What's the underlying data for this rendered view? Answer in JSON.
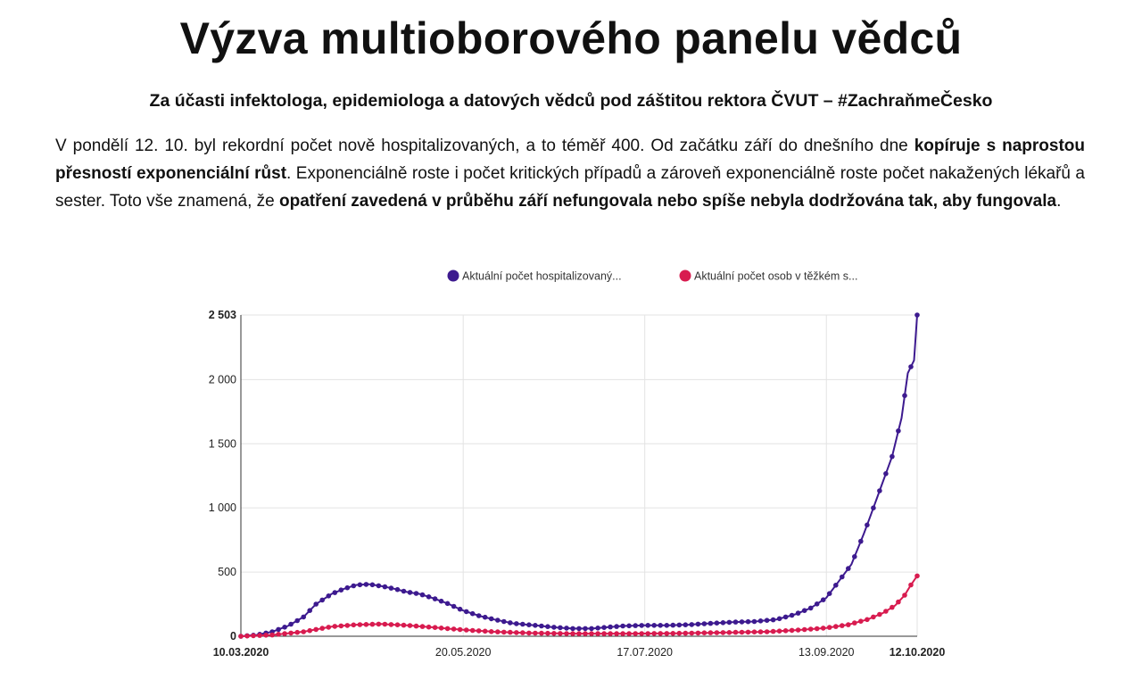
{
  "header": {
    "title": "Výzva multioborového panelu vědců",
    "subtitle": "Za účasti infektologa, epidemiologa a datových vědců pod záštitou rektora ČVUT – #ZachraňmeČesko"
  },
  "paragraph": {
    "p1": "V pondělí 12. 10. byl rekordní počet nově hospitalizovaných, a to téměř 400. Od začátku září do dnešního dne ",
    "b1": "kopíruje s naprostou přesností exponenciální růst",
    "p2": ". Exponenciálně roste i počet kritických případů a zároveň exponenciálně roste počet nakažených lékařů a sester. Toto vše znamená, že ",
    "b2": "opatření zavedená v průběhu září nefungovala nebo spíše nebyla dodržována tak, aby fungovala",
    "p3": "."
  },
  "chart_data": {
    "type": "line",
    "x_start": "10.03.2020",
    "x_end": "12.10.2020",
    "x_ticks": [
      {
        "label": "10.03.2020",
        "date": "2020-03-10",
        "bold": true
      },
      {
        "label": "20.05.2020",
        "date": "2020-05-20",
        "bold": false
      },
      {
        "label": "17.07.2020",
        "date": "2020-07-17",
        "bold": false
      },
      {
        "label": "13.09.2020",
        "date": "2020-09-13",
        "bold": false
      },
      {
        "label": "12.10.2020",
        "date": "2020-10-12",
        "bold": true
      }
    ],
    "y_ticks": [
      {
        "label": "0",
        "value": 0,
        "bold": true
      },
      {
        "label": "500",
        "value": 500,
        "bold": false
      },
      {
        "label": "1 000",
        "value": 1000,
        "bold": false
      },
      {
        "label": "1 500",
        "value": 1500,
        "bold": false
      },
      {
        "label": "2 000",
        "value": 2000,
        "bold": false
      },
      {
        "label": "2 503",
        "value": 2503,
        "bold": true
      }
    ],
    "ylim": [
      0,
      2503
    ],
    "grid": true,
    "legend_position": "top",
    "series": [
      {
        "name": "Aktuální počet hospitalizovaný...",
        "color": "#3d1a8f",
        "points": [
          [
            "2020-03-10",
            0
          ],
          [
            "2020-03-15",
            10
          ],
          [
            "2020-03-20",
            35
          ],
          [
            "2020-03-25",
            80
          ],
          [
            "2020-03-30",
            150
          ],
          [
            "2020-04-03",
            250
          ],
          [
            "2020-04-08",
            330
          ],
          [
            "2020-04-12",
            370
          ],
          [
            "2020-04-16",
            400
          ],
          [
            "2020-04-20",
            405
          ],
          [
            "2020-04-24",
            390
          ],
          [
            "2020-04-28",
            370
          ],
          [
            "2020-05-02",
            345
          ],
          [
            "2020-05-06",
            330
          ],
          [
            "2020-05-10",
            300
          ],
          [
            "2020-05-15",
            255
          ],
          [
            "2020-05-20",
            200
          ],
          [
            "2020-05-25",
            160
          ],
          [
            "2020-05-30",
            130
          ],
          [
            "2020-06-05",
            100
          ],
          [
            "2020-06-12",
            85
          ],
          [
            "2020-06-18",
            70
          ],
          [
            "2020-06-24",
            60
          ],
          [
            "2020-06-30",
            60
          ],
          [
            "2020-07-05",
            70
          ],
          [
            "2020-07-10",
            80
          ],
          [
            "2020-07-17",
            85
          ],
          [
            "2020-07-24",
            85
          ],
          [
            "2020-07-31",
            90
          ],
          [
            "2020-08-07",
            100
          ],
          [
            "2020-08-14",
            110
          ],
          [
            "2020-08-21",
            115
          ],
          [
            "2020-08-28",
            130
          ],
          [
            "2020-09-03",
            170
          ],
          [
            "2020-09-08",
            220
          ],
          [
            "2020-09-13",
            300
          ],
          [
            "2020-09-17",
            430
          ],
          [
            "2020-09-21",
            560
          ],
          [
            "2020-09-25",
            800
          ],
          [
            "2020-09-28",
            1000
          ],
          [
            "2020-10-01",
            1200
          ],
          [
            "2020-10-04",
            1400
          ],
          [
            "2020-10-07",
            1700
          ],
          [
            "2020-10-09",
            2050
          ],
          [
            "2020-10-11",
            2150
          ],
          [
            "2020-10-12",
            2503
          ]
        ]
      },
      {
        "name": "Aktuální počet osob v těžkém s...",
        "color": "#d81b4f",
        "points": [
          [
            "2020-03-10",
            0
          ],
          [
            "2020-03-20",
            10
          ],
          [
            "2020-03-30",
            35
          ],
          [
            "2020-04-08",
            75
          ],
          [
            "2020-04-16",
            90
          ],
          [
            "2020-04-24",
            95
          ],
          [
            "2020-05-02",
            85
          ],
          [
            "2020-05-10",
            70
          ],
          [
            "2020-05-20",
            50
          ],
          [
            "2020-05-30",
            35
          ],
          [
            "2020-06-10",
            25
          ],
          [
            "2020-06-25",
            20
          ],
          [
            "2020-07-10",
            20
          ],
          [
            "2020-07-25",
            22
          ],
          [
            "2020-08-10",
            28
          ],
          [
            "2020-08-25",
            35
          ],
          [
            "2020-09-05",
            50
          ],
          [
            "2020-09-13",
            65
          ],
          [
            "2020-09-20",
            90
          ],
          [
            "2020-09-26",
            130
          ],
          [
            "2020-10-01",
            180
          ],
          [
            "2020-10-05",
            240
          ],
          [
            "2020-10-08",
            320
          ],
          [
            "2020-10-10",
            400
          ],
          [
            "2020-10-12",
            470
          ]
        ]
      }
    ]
  }
}
